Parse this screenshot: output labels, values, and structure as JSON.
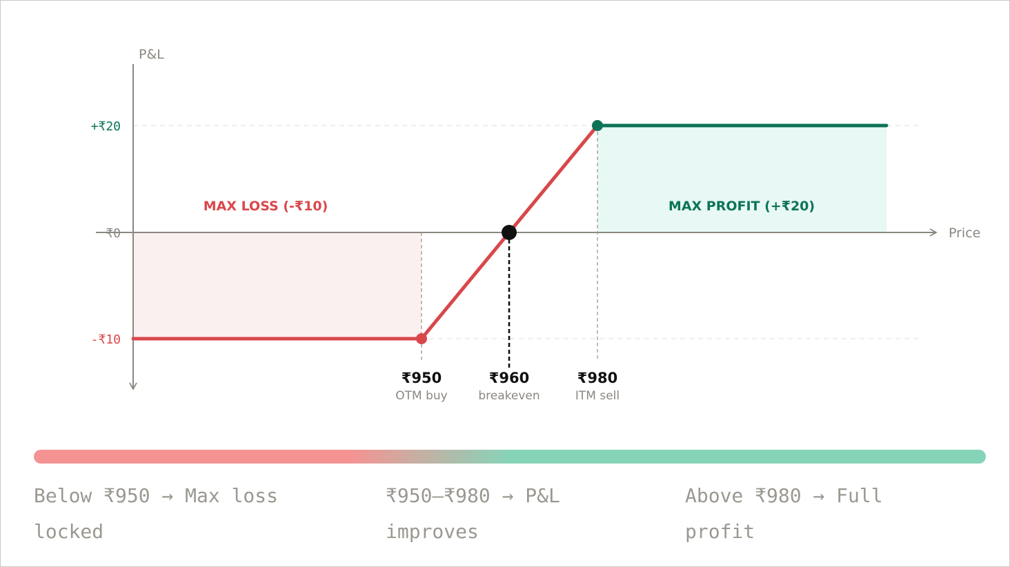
{
  "chart_data": {
    "type": "line",
    "series": [
      {
        "points": [
          {
            "x": 950,
            "y": -10
          },
          {
            "x": 980,
            "y": 20
          }
        ]
      }
    ],
    "axes": {
      "y_label": "P&L",
      "x_label": "Price",
      "y_ticks": [
        {
          "value": 20,
          "label": "+₹20"
        },
        {
          "value": 0,
          "label": "₹0"
        },
        {
          "value": -10,
          "label": "-₹10"
        }
      ]
    },
    "key_points": [
      {
        "x": 950,
        "y": -10,
        "price_label": "₹950",
        "sub_label": "OTM buy"
      },
      {
        "x": 960,
        "y": 0,
        "price_label": "₹960",
        "sub_label": "breakeven"
      },
      {
        "x": 980,
        "y": 20,
        "price_label": "₹980",
        "sub_label": "ITM sell"
      }
    ],
    "annotations": {
      "max_loss": "MAX LOSS (-₹10)",
      "max_profit": "MAX PROFIT (+₹20)"
    },
    "colors": {
      "loss": "#d9474b",
      "profit": "#0d7358",
      "loss_fill": "#fbf0f0",
      "profit_fill": "#e8f8f4",
      "axis": "#8a877f",
      "breakeven": "#111111"
    }
  },
  "zones": [
    {
      "label": "Below ₹950 → Max loss locked"
    },
    {
      "label": "₹950–₹980 → P&L improves"
    },
    {
      "label": "Above ₹980 → Full profit"
    }
  ],
  "scale_colors": {
    "loss": "#f59393",
    "profit": "#86d4b8"
  }
}
